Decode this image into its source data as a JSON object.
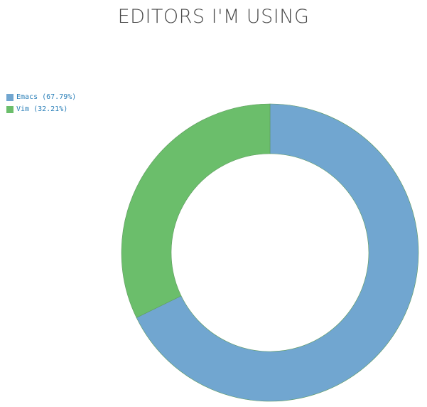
{
  "chart_data": {
    "type": "pie",
    "title": "EDITORS I'M USING",
    "donut": true,
    "legend_position": "top-left",
    "series": [
      {
        "name": "Emacs",
        "value": 67.79,
        "label": "Emacs (67.79%)",
        "color": "#71a6d0"
      },
      {
        "name": "Vim",
        "value": 32.21,
        "label": "Vim (32.21%)",
        "color": "#6bbe6b"
      }
    ]
  }
}
